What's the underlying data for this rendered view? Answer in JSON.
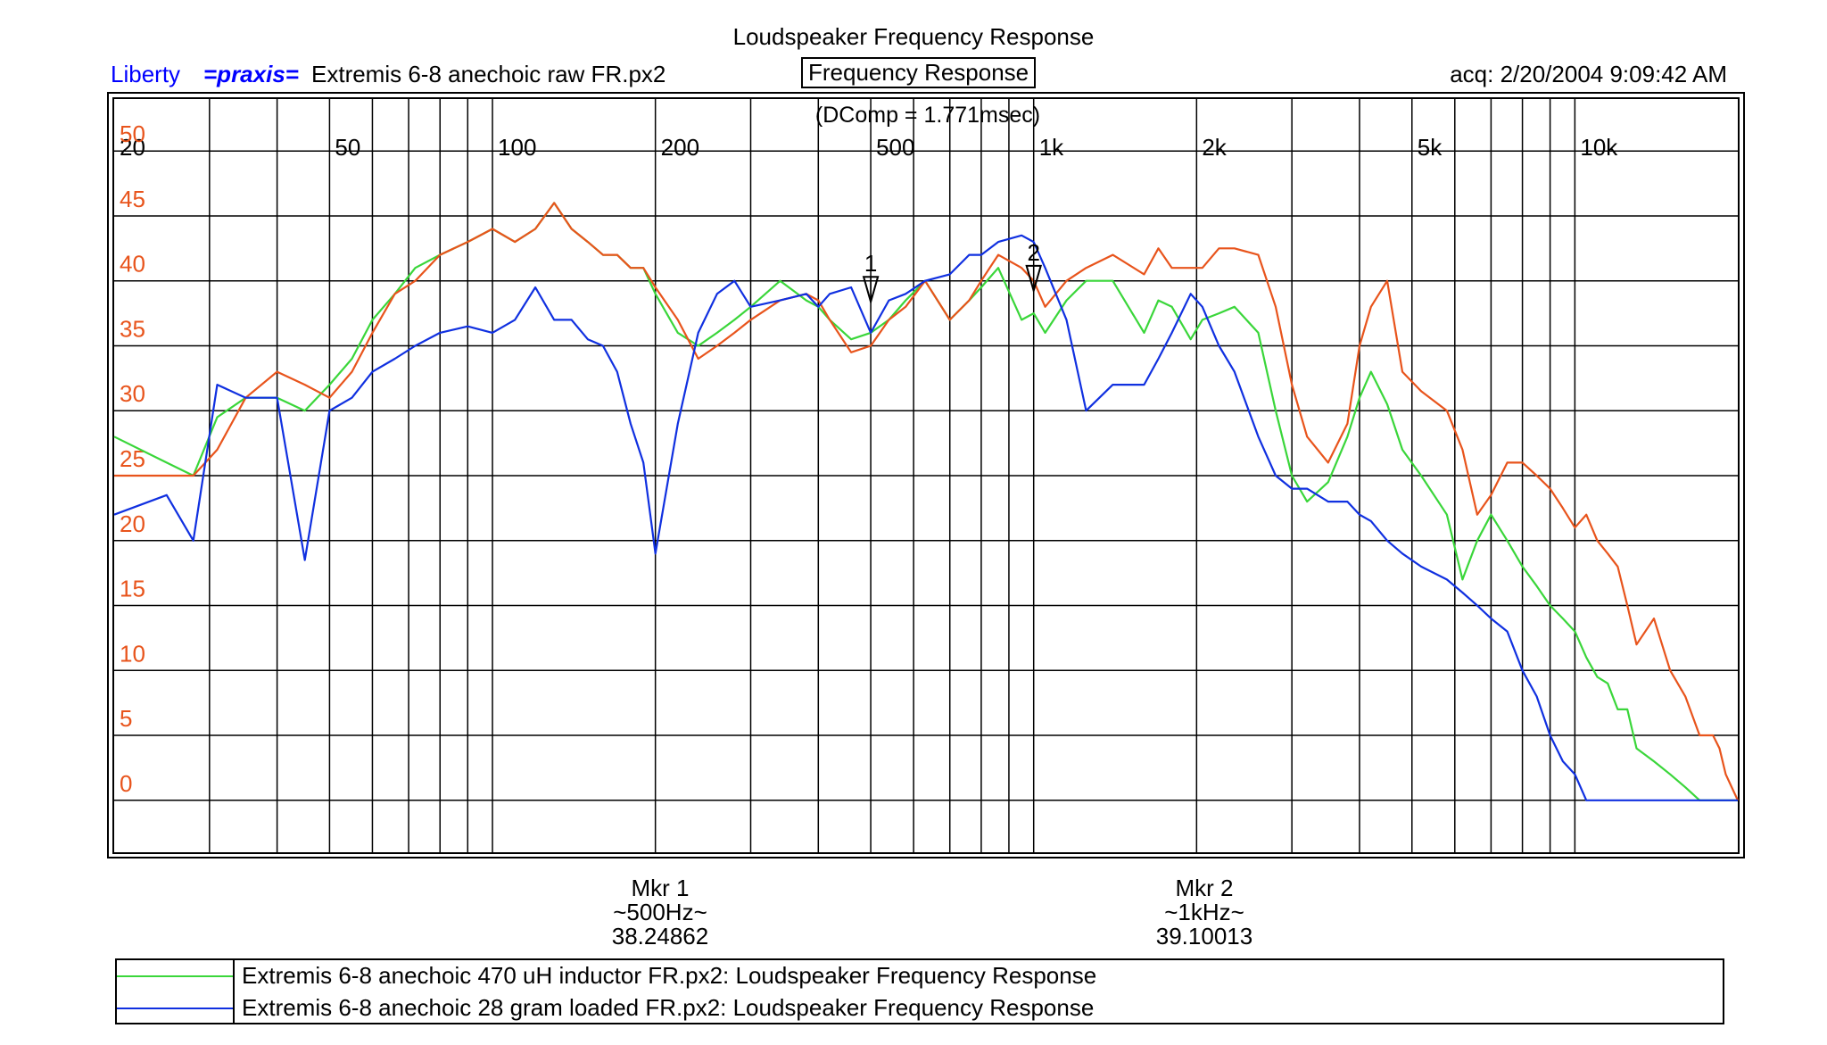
{
  "header": {
    "title": "Loudspeaker Frequency Response",
    "app_name": "Liberty",
    "brand_mark": "=praxis=",
    "file_name": "Extremis 6-8 anechoic raw FR.px2",
    "panel_title": "Frequency Response",
    "acquired": "acq: 2/20/2004 9:09:42 AM"
  },
  "colors": {
    "raw": "#e8541c",
    "inductor": "#3ad63a",
    "loaded": "#1030e0",
    "grid": "#000000",
    "tick_labels_y": "#e8541c"
  },
  "chart_data": {
    "type": "line",
    "title": "Loudspeaker Frequency Response",
    "annotation": "(DComp = 1.771msec)",
    "x_scale": "log",
    "xlim": [
      20,
      20000
    ],
    "ylim": [
      -4,
      54
    ],
    "grid": true,
    "x_tick_labels": [
      {
        "value": 20,
        "label": "20"
      },
      {
        "value": 50,
        "label": "50"
      },
      {
        "value": 100,
        "label": "100"
      },
      {
        "value": 200,
        "label": "200"
      },
      {
        "value": 500,
        "label": "500"
      },
      {
        "value": 1000,
        "label": "1k"
      },
      {
        "value": 2000,
        "label": "2k"
      },
      {
        "value": 5000,
        "label": "5k"
      },
      {
        "value": 10000,
        "label": "10k"
      }
    ],
    "y_tick_labels": [
      {
        "value": 50,
        "label": "50"
      },
      {
        "value": 45,
        "label": "45"
      },
      {
        "value": 40,
        "label": "40"
      },
      {
        "value": 35,
        "label": "35"
      },
      {
        "value": 30,
        "label": "30"
      },
      {
        "value": 25,
        "label": "25"
      },
      {
        "value": 20,
        "label": "20"
      },
      {
        "value": 15,
        "label": "15"
      },
      {
        "value": 10,
        "label": "10"
      },
      {
        "value": 5,
        "label": "5"
      },
      {
        "value": 0,
        "label": "0"
      }
    ],
    "markers": [
      {
        "id": "1",
        "freq": 500,
        "value": 38.24862,
        "title": "Mkr 1",
        "freq_label": "~500Hz~",
        "value_label": "38.24862"
      },
      {
        "id": "2",
        "freq": 1000,
        "value": 39.10013,
        "title": "Mkr 2",
        "freq_label": "~1kHz~",
        "value_label": "39.10013"
      }
    ],
    "series": [
      {
        "key": "raw",
        "x": [
          20,
          25,
          28,
          31,
          35,
          40,
          45,
          50,
          55,
          60,
          66,
          72,
          80,
          90,
          100,
          110,
          120,
          130,
          140,
          150,
          160,
          170,
          180,
          190,
          200,
          220,
          240,
          260,
          280,
          300,
          340,
          380,
          400,
          420,
          460,
          500,
          540,
          580,
          630,
          700,
          760,
          800,
          860,
          950,
          1000,
          1050,
          1150,
          1250,
          1400,
          1600,
          1700,
          1800,
          1950,
          2050,
          2200,
          2350,
          2600,
          2800,
          3000,
          3200,
          3500,
          3800,
          4000,
          4200,
          4500,
          4800,
          5200,
          5800,
          6200,
          6600,
          7000,
          7500,
          8000,
          8500,
          9000,
          9500,
          10000,
          10500,
          11000,
          11500,
          12000,
          12500,
          13000,
          14000,
          15000,
          16000,
          17000,
          18000,
          18500,
          19000,
          20000
        ],
        "y": [
          25,
          25,
          25,
          27,
          31,
          33,
          32,
          31,
          33,
          36,
          39,
          40,
          42,
          43,
          44,
          43,
          44,
          46,
          44,
          43,
          42,
          42,
          41,
          41,
          39.5,
          37,
          34,
          35,
          36,
          37,
          38.5,
          39,
          38.5,
          37,
          34.5,
          35,
          37,
          38,
          40,
          37,
          38.5,
          40,
          42,
          41,
          40,
          38,
          40,
          41,
          42,
          40.5,
          42.5,
          41,
          41,
          41,
          42.5,
          42.5,
          42,
          38,
          32,
          28,
          26,
          29,
          35,
          38,
          40,
          33,
          31.5,
          30,
          27,
          22,
          23.5,
          26,
          26,
          25,
          24,
          22.5,
          21,
          22,
          20,
          19,
          18,
          15,
          12,
          14,
          10,
          8,
          5,
          5,
          4,
          2,
          0
        ]
      },
      {
        "key": "inductor",
        "x": [
          20,
          25,
          28,
          31,
          35,
          40,
          45,
          50,
          55,
          60,
          66,
          72,
          80,
          90,
          100,
          110,
          120,
          130,
          140,
          150,
          160,
          170,
          180,
          190,
          200,
          220,
          240,
          260,
          280,
          300,
          340,
          380,
          400,
          420,
          460,
          500,
          540,
          580,
          630,
          700,
          760,
          800,
          860,
          950,
          1000,
          1050,
          1150,
          1250,
          1400,
          1600,
          1700,
          1800,
          1950,
          2050,
          2200,
          2350,
          2600,
          2800,
          3000,
          3200,
          3500,
          3800,
          4000,
          4200,
          4500,
          4800,
          5200,
          5800,
          6200,
          6600,
          7000,
          7500,
          8000,
          8500,
          9000,
          9500,
          10000,
          10500,
          11000,
          11500,
          12000,
          12500,
          13000,
          14000,
          15000,
          16000,
          17000,
          18000,
          18500,
          19000,
          20000
        ],
        "y": [
          28,
          26,
          25,
          29.5,
          31,
          31,
          30,
          32,
          34,
          37,
          39,
          41,
          42,
          43,
          44,
          43,
          44,
          46,
          44,
          43,
          42,
          42,
          41,
          41,
          39,
          36,
          35,
          36,
          37,
          38,
          40,
          38.5,
          38,
          37,
          35.5,
          36,
          37,
          38.5,
          40,
          37,
          38.5,
          39.5,
          41,
          37,
          37.5,
          36,
          38.5,
          40,
          40,
          36,
          38.5,
          38,
          35.5,
          37,
          37.5,
          38,
          36,
          30,
          25,
          23,
          24.5,
          28,
          31,
          33,
          30.5,
          27,
          25,
          22,
          17,
          20,
          22,
          20,
          18,
          16.5,
          15,
          14,
          13,
          11,
          9.5,
          9,
          7,
          7,
          4,
          3,
          2,
          1,
          0,
          0,
          0,
          0,
          0
        ]
      },
      {
        "key": "loaded",
        "x": [
          20,
          25,
          28,
          31,
          35,
          40,
          45,
          50,
          55,
          60,
          66,
          72,
          80,
          90,
          100,
          110,
          120,
          130,
          140,
          150,
          160,
          170,
          180,
          190,
          200,
          220,
          240,
          260,
          280,
          300,
          340,
          380,
          400,
          420,
          460,
          500,
          540,
          580,
          630,
          700,
          760,
          800,
          860,
          950,
          1000,
          1050,
          1150,
          1250,
          1400,
          1600,
          1700,
          1800,
          1950,
          2050,
          2200,
          2350,
          2600,
          2800,
          3000,
          3200,
          3500,
          3800,
          4000,
          4200,
          4500,
          4800,
          5200,
          5800,
          6200,
          6600,
          7000,
          7500,
          8000,
          8500,
          9000,
          9500,
          10000,
          10500,
          11000,
          11500,
          12000,
          12500,
          13000,
          14000,
          15000,
          16000,
          17000,
          18000,
          18500,
          19000,
          20000
        ],
        "y": [
          22,
          23.5,
          20,
          32,
          31,
          31,
          18.5,
          30,
          31,
          33,
          34,
          35,
          36,
          36.5,
          36,
          37,
          39.5,
          37,
          37,
          35.5,
          35,
          33,
          29,
          26,
          19,
          29,
          36,
          39,
          40,
          38,
          38.5,
          39,
          38,
          39,
          39.5,
          36,
          38.5,
          39,
          40,
          40.5,
          42,
          42,
          43,
          43.5,
          43,
          41,
          37,
          30,
          32,
          32,
          34,
          36,
          39,
          38,
          35,
          33,
          28,
          25,
          24,
          24,
          23,
          23,
          22,
          21.5,
          20,
          19,
          18,
          17,
          16,
          15,
          14,
          13,
          10,
          8,
          5,
          3,
          2,
          0,
          0,
          0,
          0,
          0,
          0,
          0,
          0,
          0,
          0,
          0,
          0,
          0,
          0
        ]
      }
    ]
  },
  "legend": {
    "items": [
      {
        "key": "inductor",
        "label": "Extremis 6-8 anechoic 470 uH inductor FR.px2:  Loudspeaker Frequency Response"
      },
      {
        "key": "loaded",
        "label": "Extremis 6-8 anechoic 28 gram loaded FR.px2:  Loudspeaker Frequency Response"
      }
    ]
  }
}
